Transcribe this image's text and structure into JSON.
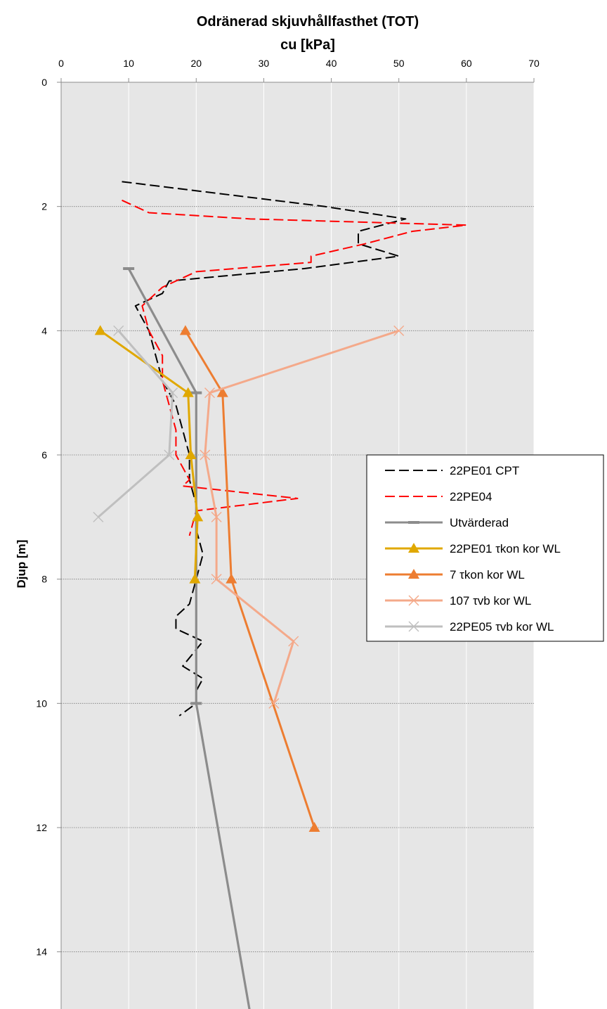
{
  "chart_data": {
    "type": "line",
    "title": "Odränerad skjuvhållfasthet (TOT)",
    "xlabel": "cu [kPa]",
    "ylabel": "Djup [m]",
    "xlim": [
      0,
      70
    ],
    "ylim": [
      0,
      15
    ],
    "y_inverted": true,
    "x_axis_position": "top",
    "x_ticks": [
      "0",
      "10",
      "20",
      "30",
      "40",
      "50",
      "60",
      "70"
    ],
    "y_ticks": [
      "0",
      "2",
      "4",
      "6",
      "8",
      "10",
      "12",
      "14"
    ],
    "grid": true,
    "plot_background": "#e6e6e6",
    "legend_position": "right",
    "series": [
      {
        "name": "22PE01 CPT",
        "color": "#000000",
        "style": "dashed",
        "marker": "none",
        "points": [
          [
            9,
            1.6
          ],
          [
            39,
            2.0
          ],
          [
            51,
            2.2
          ],
          [
            44,
            2.4
          ],
          [
            44,
            2.6
          ],
          [
            50,
            2.8
          ],
          [
            36,
            3.0
          ],
          [
            16,
            3.2
          ],
          [
            15,
            3.4
          ],
          [
            11,
            3.6
          ],
          [
            12,
            3.8
          ],
          [
            13,
            4.0
          ],
          [
            14,
            4.4
          ],
          [
            15,
            4.8
          ],
          [
            17,
            5.2
          ],
          [
            18,
            5.6
          ],
          [
            19,
            6.0
          ],
          [
            19,
            6.4
          ],
          [
            20,
            6.8
          ],
          [
            20,
            7.2
          ],
          [
            21,
            7.6
          ],
          [
            20,
            8.0
          ],
          [
            19,
            8.4
          ],
          [
            17,
            8.6
          ],
          [
            17,
            8.8
          ],
          [
            21,
            9.0
          ],
          [
            18,
            9.4
          ],
          [
            21,
            9.6
          ],
          [
            20,
            9.8
          ],
          [
            20,
            10.0
          ],
          [
            17.5,
            10.2
          ]
        ]
      },
      {
        "name": "22PE04",
        "color": "#ff0000",
        "style": "dashed",
        "marker": "none",
        "points": [
          [
            9,
            1.9
          ],
          [
            13,
            2.1
          ],
          [
            28,
            2.2
          ],
          [
            60,
            2.3
          ],
          [
            52,
            2.4
          ],
          [
            45,
            2.6
          ],
          [
            37,
            2.8
          ],
          [
            37,
            2.9
          ],
          [
            20,
            3.05
          ],
          [
            15,
            3.3
          ],
          [
            12,
            3.6
          ],
          [
            13,
            4.0
          ],
          [
            15,
            4.4
          ],
          [
            15,
            4.8
          ],
          [
            16,
            5.2
          ],
          [
            17,
            5.6
          ],
          [
            17,
            6.0
          ],
          [
            19,
            6.4
          ],
          [
            18,
            6.5
          ],
          [
            35,
            6.7
          ],
          [
            20,
            6.9
          ],
          [
            19,
            7.3
          ]
        ]
      },
      {
        "name": "Utvärderad",
        "color": "#8c8c8c",
        "style": "solid",
        "marker": "dash",
        "points": [
          [
            10,
            3.0
          ],
          [
            20,
            5.0
          ],
          [
            20,
            10.0
          ],
          [
            28,
            15.0
          ]
        ]
      },
      {
        "name": "22PE01 τkon kor WL",
        "color": "#e0a800",
        "style": "solid",
        "marker": "triangle",
        "points": [
          [
            5.8,
            4.0
          ],
          [
            18.8,
            5.0
          ],
          [
            19.2,
            6.0
          ],
          [
            20.2,
            7.0
          ],
          [
            19.8,
            8.0
          ]
        ]
      },
      {
        "name": "7 τkon kor WL",
        "color": "#ed7d31",
        "style": "solid",
        "marker": "triangle",
        "points": [
          [
            18.4,
            4.0
          ],
          [
            23.9,
            5.0
          ],
          [
            25.2,
            8.0
          ],
          [
            37.5,
            12.0
          ]
        ]
      },
      {
        "name": "107 τvb kor WL",
        "color": "#f4a98a",
        "style": "solid",
        "marker": "x",
        "points": [
          [
            50,
            4.0
          ],
          [
            22,
            5.0
          ],
          [
            21.3,
            6.0
          ],
          [
            23,
            7.0
          ],
          [
            23,
            8.0
          ],
          [
            34.4,
            9.0
          ],
          [
            31.5,
            10.0
          ]
        ]
      },
      {
        "name": "22PE05 τvb kor WL",
        "color": "#bfbfbf",
        "style": "solid",
        "marker": "x",
        "points": [
          [
            8.5,
            4.0
          ],
          [
            16.5,
            5.0
          ],
          [
            16,
            6.0
          ],
          [
            5.5,
            7.0
          ]
        ]
      }
    ]
  }
}
